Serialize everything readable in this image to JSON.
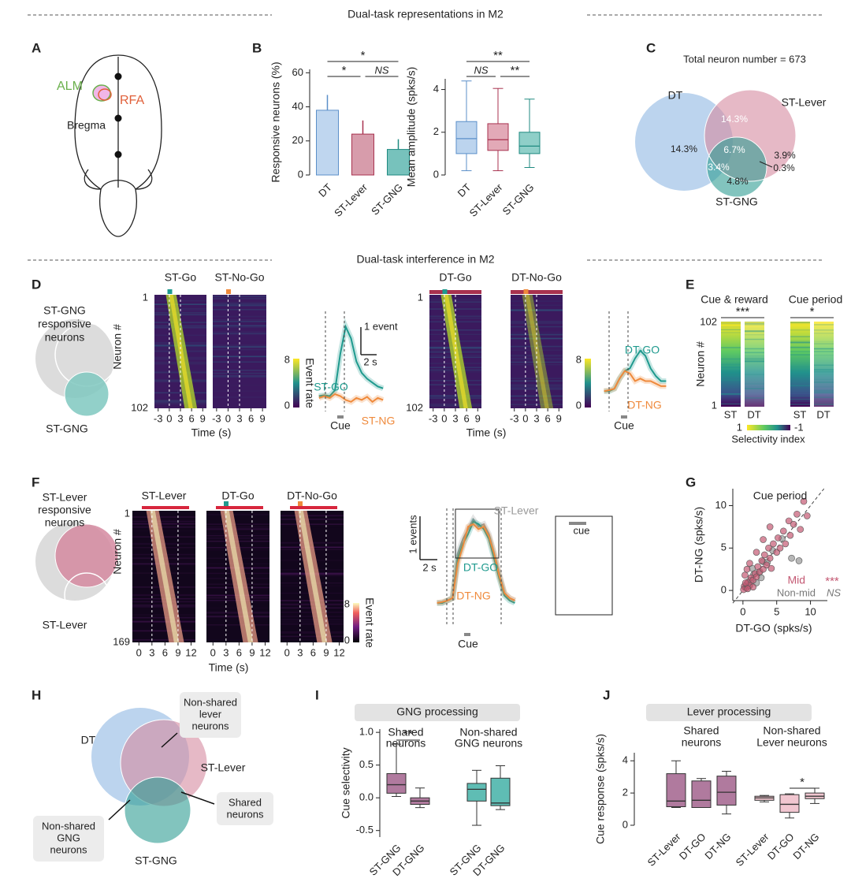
{
  "sections": [
    "Dual-task representations in M2",
    "Dual-task interference in M2"
  ],
  "panels": [
    "A",
    "B",
    "C",
    "D",
    "E",
    "F",
    "G",
    "H",
    "I",
    "J"
  ],
  "panel_a": {
    "labels": [
      "ALM",
      "RFA",
      "Bregma"
    ]
  },
  "panel_c": {
    "title": "Total neuron number = 673",
    "sets": [
      "DT",
      "ST-Lever",
      "ST-GNG"
    ],
    "regions": [
      "14.3%",
      "14.3%",
      "3.9%",
      "6.7%",
      "3.4%",
      "4.8%",
      "0.3%"
    ]
  },
  "panel_d": {
    "population": [
      "ST-GNG",
      "responsive",
      "neurons"
    ],
    "venn_label": "ST-GNG",
    "heatmap_titles": [
      "ST-Go",
      "ST-No-Go",
      "DT-Go",
      "DT-No-Go"
    ],
    "neuron_axis": "Neuron #",
    "neuron_ticks": [
      1,
      102
    ],
    "xlim": [
      -4,
      10
    ],
    "time_ticks": [
      -3,
      0,
      3,
      6,
      9
    ],
    "time_label": "Time (s)",
    "colorbar_ticks": [
      8,
      0
    ],
    "colorbar_label": "Event rate"
  },
  "panel_e": {
    "titles": [
      "Cue & reward",
      "Cue period"
    ],
    "significance": [
      "***",
      "*"
    ],
    "neuron_axis": "Neuron #",
    "neuron_ticks": [
      102,
      1
    ],
    "columns": [
      "ST",
      "DT",
      "ST",
      "DT"
    ],
    "colorbar_ticks": [
      1,
      -1
    ],
    "colorbar_label": "Selectivity index"
  },
  "panel_f": {
    "population": [
      "ST-Lever",
      "responsive",
      "neurons"
    ],
    "venn_label": "ST-Lever",
    "heatmap_titles": [
      "ST-Lever",
      "DT-Go",
      "DT-No-Go"
    ],
    "neuron_axis": "Neuron #",
    "neuron_ticks": [
      1,
      169
    ],
    "xlim": [
      -1.5,
      13
    ],
    "time_ticks": [
      0,
      3,
      6,
      9,
      12
    ],
    "time_label": "Time (s)",
    "colorbar_ticks": [
      8,
      0
    ],
    "colorbar_label": "Event rate",
    "inset_label": "cue"
  },
  "panel_h": {
    "sets": [
      "DT",
      "ST-Lever",
      "ST-GNG"
    ],
    "callouts": [
      [
        "Non-shared",
        "lever",
        "neurons"
      ],
      [
        "Shared",
        "neurons"
      ],
      [
        "Non-shared",
        "GNG",
        "neurons"
      ]
    ]
  },
  "chart_data": [
    {
      "type": "bar",
      "ylabel": "Responsive neurons (%)",
      "categories": [
        "DT",
        "ST-Lever",
        "ST-GNG"
      ],
      "values": [
        38,
        24,
        15
      ],
      "errors": [
        9,
        8,
        6
      ],
      "colors": [
        "#a9c8ea",
        "#c97b8f",
        "#49ada5"
      ],
      "edge_colors": [
        "#5b8fc9",
        "#a8324f",
        "#1f8a80"
      ],
      "ylim": [
        0,
        62
      ],
      "yticks": [
        0,
        20,
        40,
        60
      ],
      "significance": [
        "*",
        "*",
        "NS"
      ]
    },
    {
      "type": "box",
      "ylabel": "Mean amplitude (spks/s)",
      "categories": [
        "DT",
        "ST-Lever",
        "ST-GNG"
      ],
      "values": [
        [
          0.2,
          1.0,
          1.7,
          2.5,
          4.4
        ],
        [
          0.2,
          1.15,
          1.65,
          2.4,
          4.05
        ],
        [
          0.35,
          1.0,
          1.35,
          2.0,
          3.55
        ]
      ],
      "colors": [
        "#bcd4ee",
        "#e2a9b7",
        "#8fcfc8"
      ],
      "edge_colors": [
        "#5b8fc9",
        "#a8324f",
        "#1f8a80"
      ],
      "ylim": [
        0,
        4.5
      ],
      "yticks": [
        0,
        2,
        4
      ],
      "significance": [
        "**",
        "NS",
        "**"
      ]
    },
    {
      "type": "line",
      "x": [
        -3,
        -2,
        -1,
        0,
        1,
        2,
        3,
        4,
        5,
        6,
        7,
        8,
        9
      ],
      "xlim": [
        -4,
        10
      ],
      "ylim": [
        -0.3,
        2.2
      ],
      "series": [
        {
          "name": "ST-GO",
          "color": "#1f9a8e",
          "values": [
            0.1,
            0.12,
            0.1,
            0.25,
            1.2,
            1.9,
            1.6,
            1.0,
            0.7,
            0.55,
            0.45,
            0.35,
            0.3
          ]
        },
        {
          "name": "ST-NG",
          "color": "#ef8a3c",
          "values": [
            0.05,
            0.1,
            0.05,
            0.15,
            0.1,
            0.0,
            -0.05,
            0.05,
            0.0,
            0.08,
            -0.05,
            0.05,
            0.0
          ]
        }
      ],
      "scale_labels": [
        "1 event",
        "2 s"
      ],
      "cue_label": "Cue"
    },
    {
      "type": "line",
      "x": [
        -3,
        -2,
        -1,
        0,
        1,
        2,
        3,
        4,
        5,
        6,
        7,
        8,
        9
      ],
      "xlim": [
        -4,
        10
      ],
      "ylim": [
        -0.3,
        1.6
      ],
      "series": [
        {
          "name": "DT-GO",
          "color": "#1f9a8e",
          "values": [
            0.1,
            0.1,
            0.15,
            0.35,
            0.5,
            0.55,
            0.75,
            0.9,
            0.8,
            0.55,
            0.4,
            0.3,
            0.3
          ]
        },
        {
          "name": "DT-NG",
          "color": "#ef8a3c",
          "values": [
            0.1,
            0.12,
            0.15,
            0.35,
            0.5,
            0.45,
            0.3,
            0.35,
            0.3,
            0.3,
            0.25,
            0.2,
            0.2
          ]
        }
      ],
      "cue_label": "Cue"
    },
    {
      "type": "line",
      "x": [
        -3,
        -2,
        -1,
        0,
        1,
        2,
        3,
        4,
        5,
        6,
        7,
        8,
        9,
        10,
        11,
        12
      ],
      "xlim": [
        -4,
        13
      ],
      "ylim": [
        -0.2,
        2.2
      ],
      "series": [
        {
          "name": "ST-Lever",
          "color": "#999999",
          "values": [
            0.2,
            0.2,
            0.25,
            0.3,
            1.2,
            1.5,
            1.7,
            1.9,
            1.75,
            1.8,
            1.6,
            1.2,
            0.8,
            0.4,
            0.3,
            0.25
          ]
        },
        {
          "name": "DT-GO",
          "color": "#1f9a8e",
          "values": [
            0.2,
            0.2,
            0.25,
            0.3,
            1.1,
            1.4,
            1.6,
            1.85,
            1.8,
            1.7,
            1.5,
            1.1,
            0.7,
            0.35,
            0.25,
            0.2
          ]
        },
        {
          "name": "DT-NG",
          "color": "#ef8a3c",
          "values": [
            0.2,
            0.22,
            0.25,
            0.3,
            1.0,
            1.35,
            1.75,
            1.8,
            1.7,
            1.75,
            1.55,
            1.2,
            0.75,
            0.4,
            0.3,
            0.25
          ]
        }
      ],
      "scale_labels": [
        "1 events",
        "2 s"
      ],
      "cue_label": "Cue"
    },
    {
      "type": "scatter",
      "title": "Cue period",
      "xlabel": "DT-GO (spks/s)",
      "ylabel": "DT-NG (spks/s)",
      "xlim": [
        -1.5,
        12.5
      ],
      "ylim": [
        -1.2,
        12
      ],
      "xticks": [
        0,
        5,
        10
      ],
      "yticks": [
        0,
        5,
        10
      ],
      "series": [
        {
          "name": "Mid",
          "color": "#c45a74",
          "x": [
            0.2,
            0.5,
            0.8,
            1.0,
            1.2,
            1.5,
            1.8,
            2.0,
            2.2,
            2.5,
            2.8,
            3.0,
            3.2,
            3.5,
            3.8,
            4.0,
            4.2,
            4.5,
            5.0,
            5.2,
            5.5,
            6.0,
            6.3,
            6.8,
            7.0,
            7.5,
            8.0,
            8.5,
            9.0,
            9.5,
            0.3,
            0.6,
            1.0,
            1.5,
            2.0,
            3.0,
            4.0,
            0.1,
            0.4,
            0.7
          ],
          "values": [
            0.5,
            0.3,
            1.0,
            0.6,
            1.5,
            1.2,
            2.0,
            1.6,
            2.8,
            2.2,
            3.5,
            2.5,
            4.2,
            3.0,
            5.0,
            3.8,
            2.6,
            5.5,
            4.5,
            6.2,
            5.0,
            7.0,
            5.5,
            8.2,
            6.5,
            7.8,
            9.0,
            7.2,
            10.5,
            8.8,
            1.8,
            2.5,
            3.2,
            0.4,
            4.5,
            6.0,
            7.5,
            0.1,
            0.9,
            0.2
          ]
        },
        {
          "name": "Non-mid",
          "color": "#999999",
          "x": [
            0.3,
            0.6,
            1.1,
            1.6,
            2.4,
            3.0,
            3.6,
            4.4,
            5.8,
            7.2,
            8.3,
            2.0,
            0.9,
            1.4,
            2.7
          ],
          "values": [
            0.4,
            0.8,
            1.2,
            1.9,
            2.1,
            3.4,
            3.3,
            4.7,
            6.1,
            3.8,
            3.5,
            0.9,
            0.5,
            2.6,
            1.5
          ]
        }
      ],
      "significance": [
        "***",
        "NS"
      ]
    },
    {
      "type": "box",
      "header": "GNG processing",
      "groups": [
        [
          "Shared",
          "neurons"
        ],
        [
          "Non-shared",
          "GNG neurons"
        ]
      ],
      "ylabel": "Cue selectivity",
      "categories": [
        "ST-GNG",
        "DT-GNG",
        "ST-GNG",
        "DT-GNG"
      ],
      "values": [
        [
          0.02,
          0.07,
          0.2,
          0.37,
          0.82
        ],
        [
          -0.15,
          -0.1,
          -0.05,
          0.0,
          0.15
        ],
        [
          -0.42,
          -0.05,
          0.13,
          0.22,
          0.42
        ],
        [
          -0.18,
          -0.12,
          -0.08,
          0.3,
          0.49
        ]
      ],
      "colors": [
        "#b07a9e",
        "#b07a9e",
        "#5fbdb4",
        "#5fbdb4"
      ],
      "edge_colors": [
        "#333333",
        "#333333",
        "#333333",
        "#333333"
      ],
      "ylim": [
        -0.6,
        1.05
      ],
      "yticks": [
        -0.5,
        {
          "value": 0,
          "label": "0.0"
        },
        0.5,
        {
          "value": 1,
          "label": "1.0"
        }
      ],
      "significance": [
        "**"
      ]
    },
    {
      "type": "box",
      "header": "Lever processing",
      "groups": [
        [
          "Shared",
          "neurons"
        ],
        [
          "Non-shared",
          "Lever neurons"
        ]
      ],
      "ylabel": "Cue response (spks/s)",
      "categories": [
        "ST-Lever",
        "DT-GO",
        "DT-NG",
        "ST-Lever",
        "DT-GO",
        "DT-NG"
      ],
      "values": [
        [
          1.1,
          1.15,
          1.5,
          3.2,
          4.0
        ],
        [
          1.1,
          1.1,
          1.55,
          2.75,
          2.9
        ],
        [
          0.7,
          1.25,
          2.05,
          3.05,
          3.35
        ],
        [
          1.45,
          1.55,
          1.7,
          1.8,
          1.85
        ],
        [
          0.45,
          0.8,
          1.3,
          1.9,
          1.95
        ],
        [
          1.35,
          1.65,
          1.8,
          2.0,
          2.3
        ]
      ],
      "colors": [
        "#b07a9e",
        "#b07a9e",
        "#b07a9e",
        "#f1c6d0",
        "#f1c6d0",
        "#f1c6d0"
      ],
      "edge_colors": [
        "#333333",
        "#333333",
        "#333333",
        "#333333",
        "#333333",
        "#333333"
      ],
      "ylim": [
        0,
        4.5
      ],
      "yticks": [
        0,
        2,
        4
      ],
      "significance": [
        "*"
      ]
    }
  ]
}
